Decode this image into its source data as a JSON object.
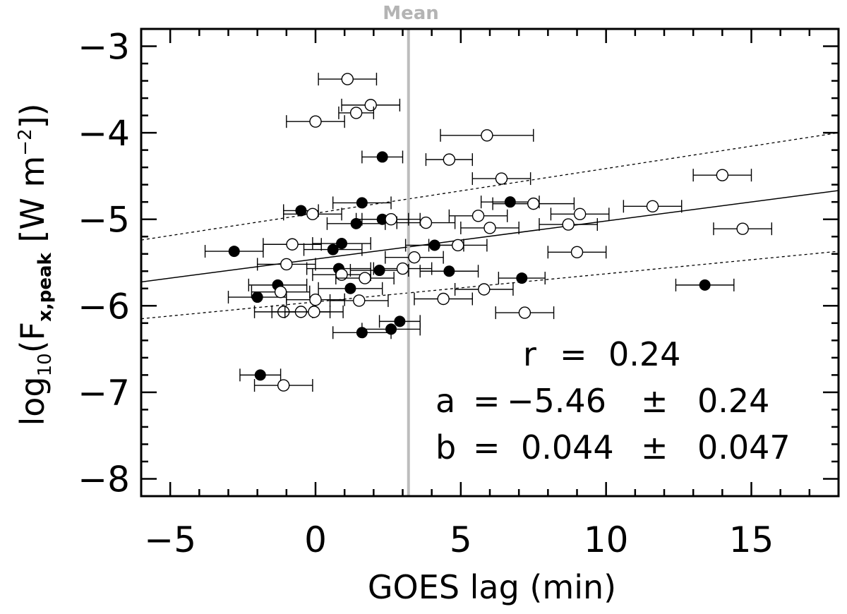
{
  "chart_data": {
    "type": "scatter",
    "title": "",
    "xlabel": "GOES lag (min)",
    "ylabel": {
      "base": "log",
      "base_sub": "10",
      "open": "(F",
      "sub": "x,peak",
      "units": " [W m",
      "sup": "−2",
      "close": "])"
    },
    "xlim": [
      -6,
      18
    ],
    "ylim": [
      -8.2,
      -2.8
    ],
    "xticks": [
      -5,
      0,
      5,
      10,
      15
    ],
    "xtick_labels": [
      "−5",
      "0",
      "5",
      "10",
      "15"
    ],
    "yticks": [
      -3,
      -4,
      -5,
      -6,
      -7,
      -8
    ],
    "ytick_labels": [
      "−3",
      "−4",
      "−5",
      "−6",
      "−7",
      "−8"
    ],
    "mean": {
      "x": 3.2,
      "label": "Mean",
      "color": "#bdbdbd"
    },
    "fit": {
      "a": -5.46,
      "b": 0.044,
      "upper": [
        [
          -6,
          -5.24
        ],
        [
          18,
          -4.0
        ]
      ],
      "lower": [
        [
          -6,
          -6.15
        ],
        [
          18,
          -5.37
        ]
      ]
    },
    "stats": {
      "r": {
        "lhs": "r",
        "eq": "=",
        "val": "0.24"
      },
      "a": {
        "lhs": "a",
        "eq": "=",
        "val": "−5.46",
        "pm": "±",
        "err": "0.24"
      },
      "b": {
        "lhs": "b",
        "eq": "=",
        "val": "0.044",
        "pm": "±",
        "err": "0.047"
      }
    },
    "series": [
      {
        "name": "filled",
        "marker": "filled-circle",
        "points": [
          {
            "x": 2.3,
            "y": -4.28,
            "xerr": 0.7
          },
          {
            "x": -0.5,
            "y": -4.9,
            "xerr": 0.6
          },
          {
            "x": 1.6,
            "y": -4.81,
            "xerr": 1.0
          },
          {
            "x": 2.3,
            "y": -5.0,
            "xerr": 0.9
          },
          {
            "x": 1.4,
            "y": -5.05,
            "xerr": 1.0
          },
          {
            "x": 6.7,
            "y": -4.8,
            "xerr": 1.0
          },
          {
            "x": -2.8,
            "y": -5.37,
            "xerr": 1.0
          },
          {
            "x": 0.9,
            "y": -5.28,
            "xerr": 1.0
          },
          {
            "x": 0.6,
            "y": -5.35,
            "xerr": 1.0
          },
          {
            "x": 4.1,
            "y": -5.3,
            "xerr": 1.0
          },
          {
            "x": 0.8,
            "y": -5.57,
            "xerr": 1.1
          },
          {
            "x": 2.2,
            "y": -5.59,
            "xerr": 1.0
          },
          {
            "x": 4.6,
            "y": -5.6,
            "xerr": 1.0
          },
          {
            "x": 7.1,
            "y": -5.68,
            "xerr": 0.8
          },
          {
            "x": 13.4,
            "y": -5.76,
            "xerr": 1.0
          },
          {
            "x": -1.3,
            "y": -5.76,
            "xerr": 1.0
          },
          {
            "x": -2.0,
            "y": -5.9,
            "xerr": 1.0
          },
          {
            "x": 1.2,
            "y": -5.8,
            "xerr": 1.1
          },
          {
            "x": 2.9,
            "y": -6.18,
            "xerr": 0.7
          },
          {
            "x": 1.6,
            "y": -6.31,
            "xerr": 1.0
          },
          {
            "x": 2.6,
            "y": -6.27,
            "xerr": 1.0
          },
          {
            "x": -1.9,
            "y": -6.8,
            "xerr": 0.7
          }
        ]
      },
      {
        "name": "open",
        "marker": "open-circle",
        "points": [
          {
            "x": 1.1,
            "y": -3.38,
            "xerr": 1.0
          },
          {
            "x": 1.9,
            "y": -3.68,
            "xerr": 1.0
          },
          {
            "x": 1.4,
            "y": -3.77,
            "xerr": 0.6
          },
          {
            "x": 0.0,
            "y": -3.87,
            "xerr": 1.0
          },
          {
            "x": 5.9,
            "y": -4.03,
            "xerr": 1.6
          },
          {
            "x": 4.6,
            "y": -4.31,
            "xerr": 0.8
          },
          {
            "x": 6.4,
            "y": -4.53,
            "xerr": 1.0
          },
          {
            "x": 14.0,
            "y": -4.49,
            "xerr": 1.0
          },
          {
            "x": 7.5,
            "y": -4.82,
            "xerr": 1.4
          },
          {
            "x": 11.6,
            "y": -4.85,
            "xerr": 1.0
          },
          {
            "x": -0.1,
            "y": -4.94,
            "xerr": 1.0
          },
          {
            "x": 5.6,
            "y": -4.96,
            "xerr": 1.0
          },
          {
            "x": 9.1,
            "y": -4.94,
            "xerr": 1.0
          },
          {
            "x": 2.6,
            "y": -5.0,
            "xerr": 1.0
          },
          {
            "x": 3.8,
            "y": -5.04,
            "xerr": 1.0
          },
          {
            "x": 8.7,
            "y": -5.06,
            "xerr": 1.0
          },
          {
            "x": 6.0,
            "y": -5.1,
            "xerr": 1.0
          },
          {
            "x": 14.7,
            "y": -5.11,
            "xerr": 1.0
          },
          {
            "x": -0.8,
            "y": -5.29,
            "xerr": 1.0
          },
          {
            "x": 4.9,
            "y": -5.3,
            "xerr": 1.0
          },
          {
            "x": 9.0,
            "y": -5.38,
            "xerr": 1.0
          },
          {
            "x": 3.4,
            "y": -5.44,
            "xerr": 1.0
          },
          {
            "x": -1.0,
            "y": -5.52,
            "xerr": 1.0
          },
          {
            "x": 3.0,
            "y": -5.57,
            "xerr": 1.0
          },
          {
            "x": 0.9,
            "y": -5.64,
            "xerr": 1.0
          },
          {
            "x": 1.7,
            "y": -5.68,
            "xerr": 1.0
          },
          {
            "x": 5.8,
            "y": -5.81,
            "xerr": 1.0
          },
          {
            "x": -1.2,
            "y": -5.84,
            "xerr": 1.0
          },
          {
            "x": 4.4,
            "y": -5.92,
            "xerr": 1.0
          },
          {
            "x": 0.0,
            "y": -5.93,
            "xerr": 1.0
          },
          {
            "x": 1.5,
            "y": -5.94,
            "xerr": 1.0
          },
          {
            "x": -1.1,
            "y": -6.07,
            "xerr": 1.0
          },
          {
            "x": -0.5,
            "y": -6.07,
            "xerr": 1.0
          },
          {
            "x": -0.05,
            "y": -6.07,
            "xerr": 1.0
          },
          {
            "x": 7.2,
            "y": -6.08,
            "xerr": 1.0
          },
          {
            "x": -1.1,
            "y": -6.92,
            "xerr": 1.0
          }
        ]
      }
    ]
  }
}
